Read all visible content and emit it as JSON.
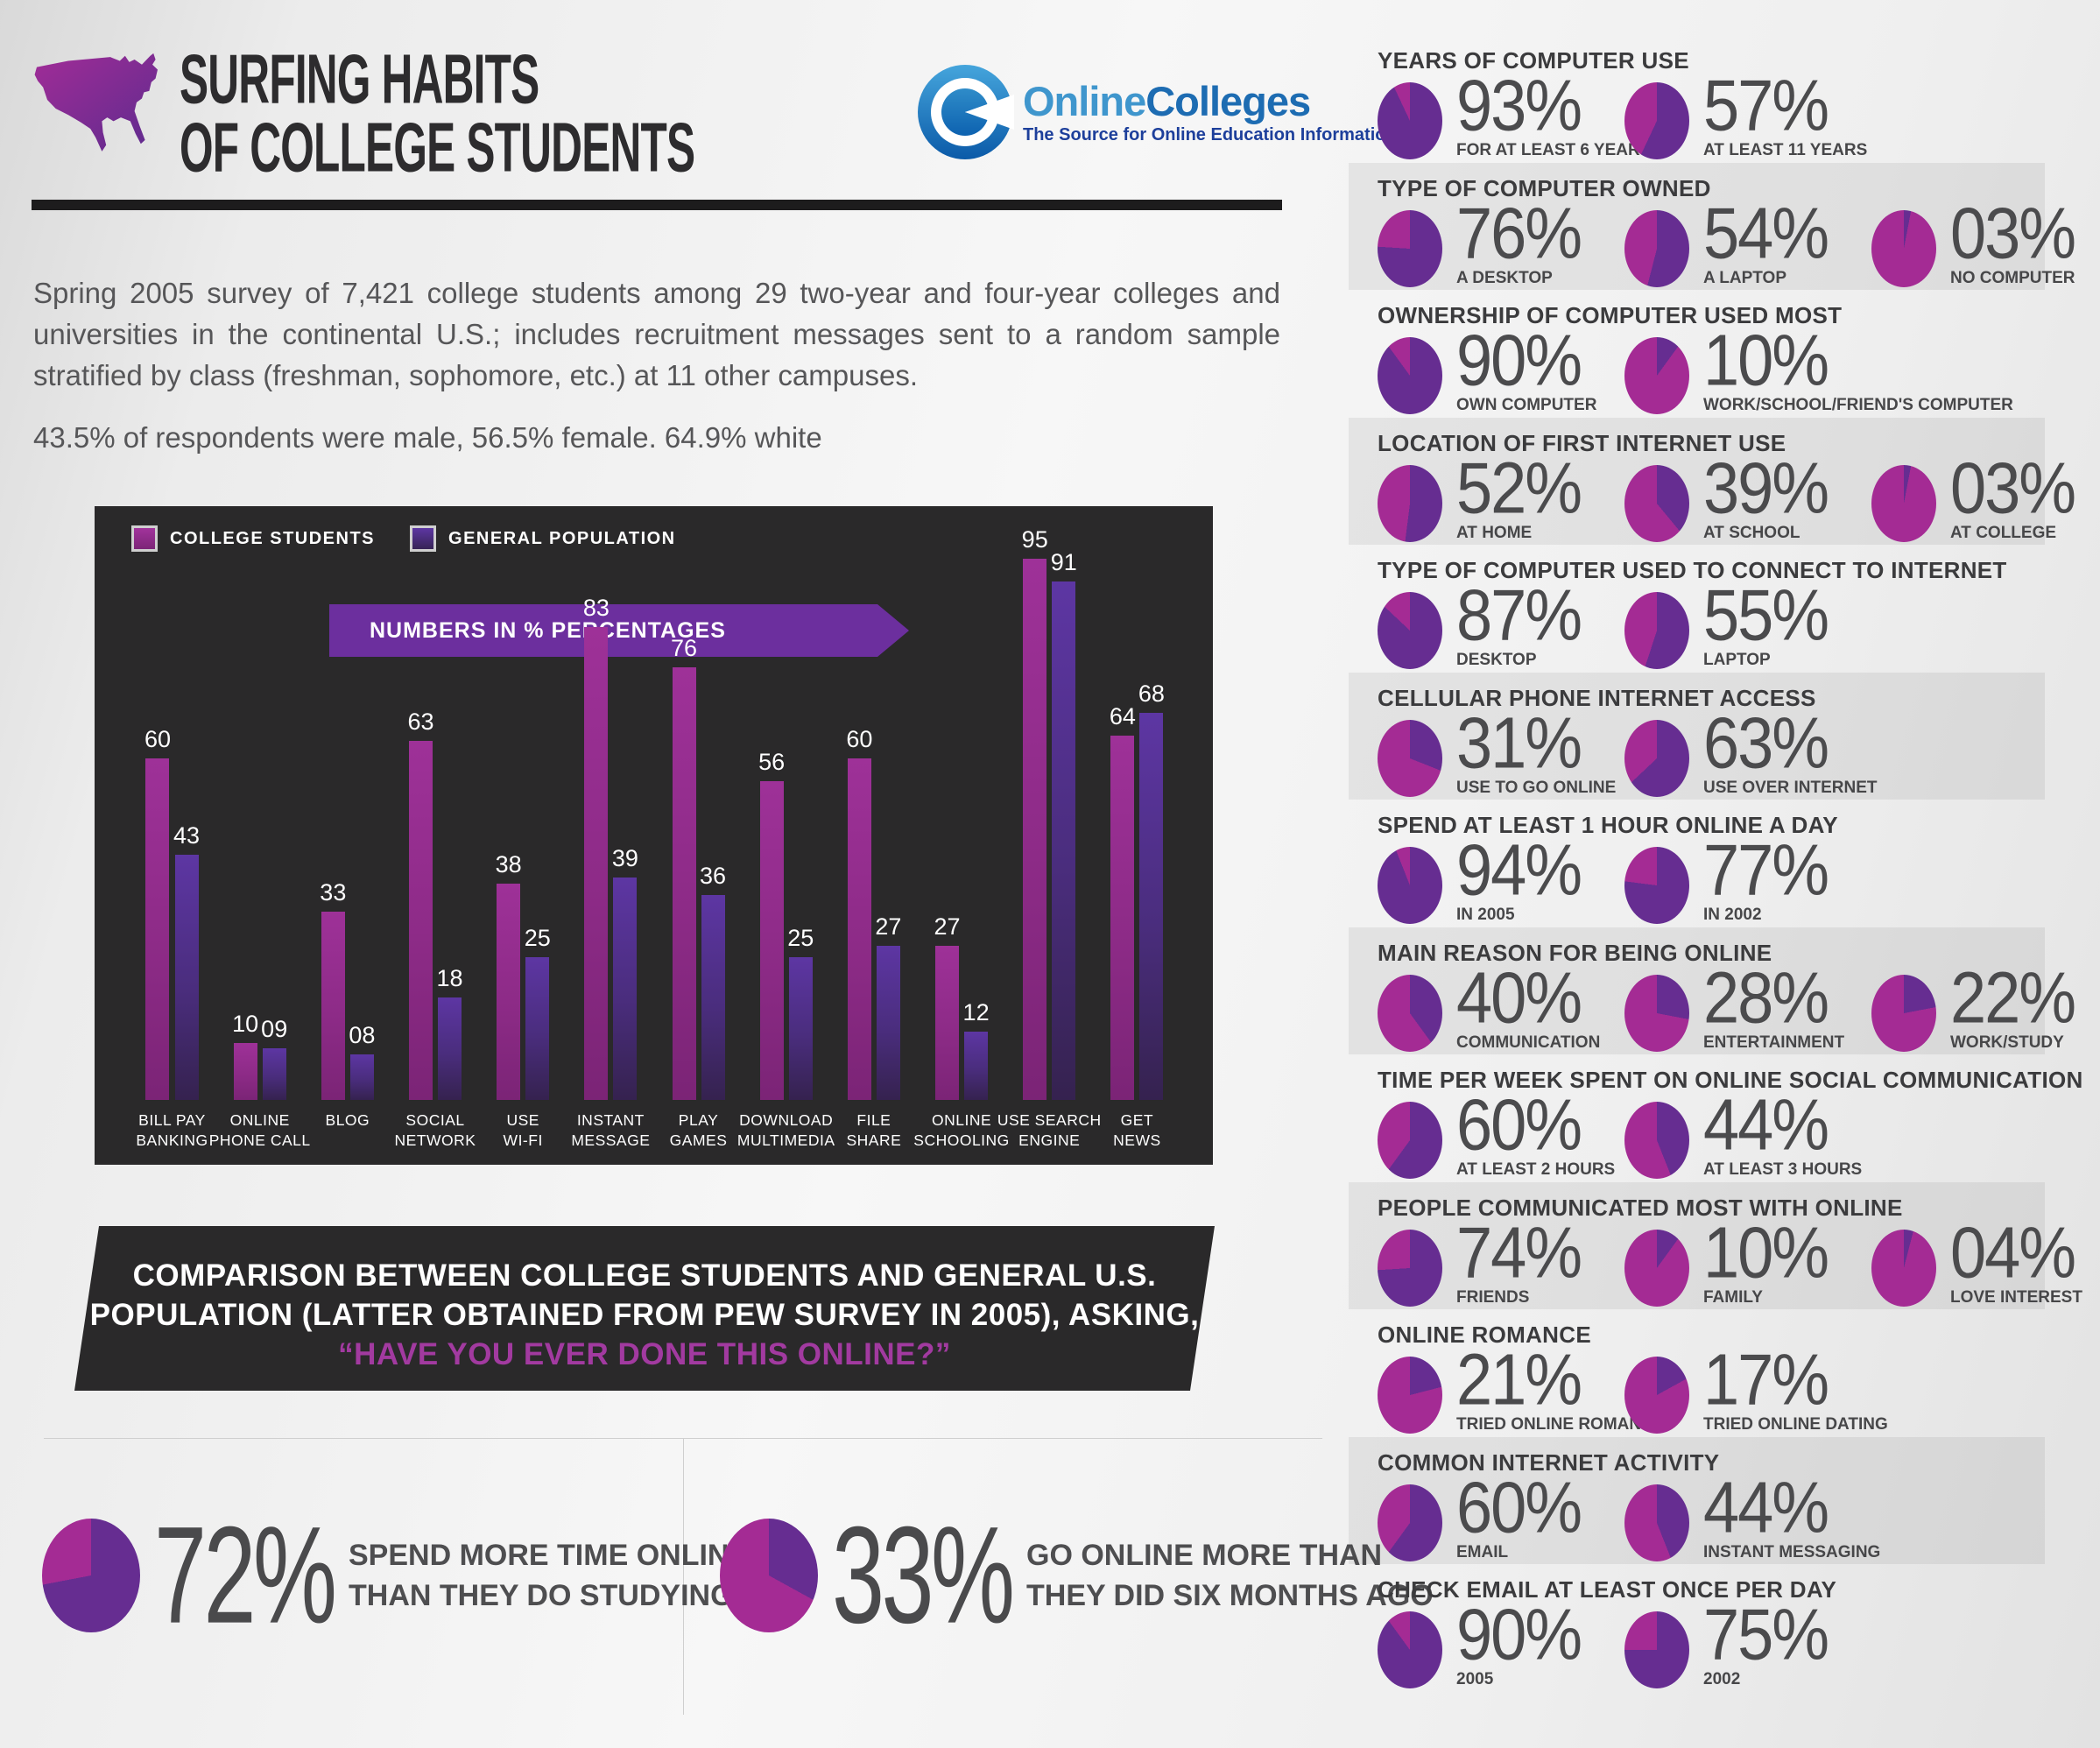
{
  "header": {
    "title_line1": "SURFING HABITS",
    "title_line2": "OF COLLEGE STUDENTS",
    "logo": {
      "word1": "Online",
      "word2": "Colleges",
      "tagline": "The Source for Online Education Information"
    },
    "intro": "Spring 2005 survey of 7,421 college students among 29 two-year and four-year colleges and universities in the continental U.S.; includes recruitment messages sent to a random sample stratified by class (freshman, sophomore, etc.) at 11 other campuses.",
    "demographics": "43.5% of respondents were male, 56.5% female. 64.9% white"
  },
  "chart": {
    "legend": {
      "college": "COLLEGE STUDENTS",
      "general": "GENERAL POPULATION"
    },
    "ribbon": "NUMBERS IN % PERCENTAGES",
    "caption_line1": "COMPARISON BETWEEN COLLEGE STUDENTS AND GENERAL U.S.",
    "caption_line2": "POPULATION (LATTER OBTAINED FROM PEW SURVEY IN 2005), ASKING,",
    "caption_line3": "“HAVE YOU EVER DONE THIS ONLINE?”"
  },
  "chart_data": {
    "type": "bar",
    "title": "Have you ever done this online? College students vs general U.S. population",
    "unit": "%",
    "ylim": [
      0,
      100
    ],
    "grid": false,
    "legend_position": "top-left",
    "categories": [
      "BILL PAY BANKING",
      "ONLINE PHONE CALL",
      "BLOG",
      "SOCIAL NETWORK",
      "USE WI-FI",
      "INSTANT MESSAGE",
      "PLAY GAMES",
      "DOWNLOAD MULTIMEDIA",
      "FILE SHARE",
      "ONLINE SCHOOLING",
      "USE SEARCH ENGINE",
      "GET NEWS"
    ],
    "category_lines": [
      [
        "BILL PAY",
        "BANKING"
      ],
      [
        "ONLINE",
        "PHONE CALL"
      ],
      [
        "BLOG"
      ],
      [
        "SOCIAL",
        "NETWORK"
      ],
      [
        "USE",
        "WI-FI"
      ],
      [
        "INSTANT",
        "MESSAGE"
      ],
      [
        "PLAY",
        "GAMES"
      ],
      [
        "DOWNLOAD",
        "MULTIMEDIA"
      ],
      [
        "FILE",
        "SHARE"
      ],
      [
        "ONLINE",
        "SCHOOLING"
      ],
      [
        "USE SEARCH",
        "ENGINE"
      ],
      [
        "GET",
        "NEWS"
      ]
    ],
    "series": [
      {
        "name": "COLLEGE STUDENTS",
        "values": [
          60,
          10,
          33,
          63,
          38,
          83,
          76,
          56,
          60,
          27,
          95,
          64
        ]
      },
      {
        "name": "GENERAL POPULATION",
        "values": [
          43,
          9,
          8,
          18,
          25,
          39,
          36,
          25,
          27,
          12,
          91,
          68
        ]
      }
    ],
    "value_labels": [
      [
        "60",
        "43"
      ],
      [
        "10",
        "09"
      ],
      [
        "33",
        "08"
      ],
      [
        "63",
        "18"
      ],
      [
        "38",
        "25"
      ],
      [
        "83",
        "39"
      ],
      [
        "76",
        "36"
      ],
      [
        "56",
        "25"
      ],
      [
        "60",
        "27"
      ],
      [
        "27",
        "12"
      ],
      [
        "95",
        "91"
      ],
      [
        "64",
        "68"
      ]
    ]
  },
  "highlights": [
    {
      "value": "72%",
      "pct": 72,
      "label_line1": "SPEND MORE TIME ONLINE",
      "label_line2": "THAN THEY DO STUDYING"
    },
    {
      "value": "33%",
      "pct": 33,
      "label_line1": "GO ONLINE MORE THAN",
      "label_line2": "THEY DID SIX MONTHS AGO"
    }
  ],
  "sidebar": {
    "sections": [
      {
        "title": "YEARS OF COMPUTER USE",
        "stats": [
          {
            "value": "93%",
            "pct": 93,
            "label": "FOR AT LEAST 6 YEARS"
          },
          {
            "value": "57%",
            "pct": 57,
            "label": "AT LEAST 11 YEARS"
          }
        ]
      },
      {
        "title": "TYPE OF COMPUTER OWNED",
        "stats": [
          {
            "value": "76%",
            "pct": 76,
            "label": "A DESKTOP"
          },
          {
            "value": "54%",
            "pct": 54,
            "label": "A LAPTOP"
          },
          {
            "value": "03%",
            "pct": 3,
            "label": "NO COMPUTER"
          }
        ]
      },
      {
        "title": "OWNERSHIP OF COMPUTER USED MOST",
        "stats": [
          {
            "value": "90%",
            "pct": 90,
            "label": "OWN COMPUTER"
          },
          {
            "value": "10%",
            "pct": 10,
            "label": "WORK/SCHOOL/FRIEND'S COMPUTER"
          }
        ]
      },
      {
        "title": "LOCATION OF FIRST INTERNET USE",
        "stats": [
          {
            "value": "52%",
            "pct": 52,
            "label": "AT HOME"
          },
          {
            "value": "39%",
            "pct": 39,
            "label": "AT SCHOOL"
          },
          {
            "value": "03%",
            "pct": 3,
            "label": "AT COLLEGE"
          }
        ]
      },
      {
        "title": "TYPE OF COMPUTER USED TO CONNECT TO INTERNET",
        "stats": [
          {
            "value": "87%",
            "pct": 87,
            "label": "DESKTOP"
          },
          {
            "value": "55%",
            "pct": 55,
            "label": "LAPTOP"
          }
        ]
      },
      {
        "title": "CELLULAR PHONE INTERNET ACCESS",
        "stats": [
          {
            "value": "31%",
            "pct": 31,
            "label": "USE TO GO ONLINE"
          },
          {
            "value": "63%",
            "pct": 63,
            "label": "USE OVER INTERNET"
          }
        ]
      },
      {
        "title": "SPEND AT LEAST 1 HOUR ONLINE A DAY",
        "stats": [
          {
            "value": "94%",
            "pct": 94,
            "label": "IN 2005"
          },
          {
            "value": "77%",
            "pct": 77,
            "label": "IN 2002"
          }
        ]
      },
      {
        "title": "MAIN REASON FOR BEING ONLINE",
        "stats": [
          {
            "value": "40%",
            "pct": 40,
            "label": "COMMUNICATION"
          },
          {
            "value": "28%",
            "pct": 28,
            "label": "ENTERTAINMENT"
          },
          {
            "value": "22%",
            "pct": 22,
            "label": "WORK/STUDY"
          }
        ]
      },
      {
        "title": "TIME PER WEEK SPENT ON ONLINE SOCIAL COMMUNICATION",
        "stats": [
          {
            "value": "60%",
            "pct": 60,
            "label": "AT LEAST 2 HOURS"
          },
          {
            "value": "44%",
            "pct": 44,
            "label": "AT LEAST 3 HOURS"
          }
        ]
      },
      {
        "title": "PEOPLE COMMUNICATED MOST WITH ONLINE",
        "stats": [
          {
            "value": "74%",
            "pct": 74,
            "label": "FRIENDS"
          },
          {
            "value": "10%",
            "pct": 10,
            "label": "FAMILY"
          },
          {
            "value": "04%",
            "pct": 4,
            "label": "LOVE INTEREST"
          }
        ]
      },
      {
        "title": "ONLINE ROMANCE",
        "stats": [
          {
            "value": "21%",
            "pct": 21,
            "label": "TRIED ONLINE ROMANCE"
          },
          {
            "value": "17%",
            "pct": 17,
            "label": "TRIED ONLINE DATING"
          }
        ]
      },
      {
        "title": "COMMON INTERNET ACTIVITY",
        "stats": [
          {
            "value": "60%",
            "pct": 60,
            "label": "EMAIL"
          },
          {
            "value": "44%",
            "pct": 44,
            "label": "INSTANT MESSAGING"
          }
        ]
      },
      {
        "title": "CHECK EMAIL AT LEAST ONCE PER DAY",
        "stats": [
          {
            "value": "90%",
            "pct": 90,
            "label": "2005"
          },
          {
            "value": "75%",
            "pct": 75,
            "label": "2002"
          }
        ]
      }
    ]
  },
  "colors": {
    "bar_students": "#9c3096",
    "bar_general": "#5d36a3",
    "pie_purple": "#662d91",
    "pie_magenta": "#a42b94",
    "panel_bg": "#2a292a",
    "accent_quote": "#a23aa0",
    "logo_blue": "#1d6cb2"
  }
}
